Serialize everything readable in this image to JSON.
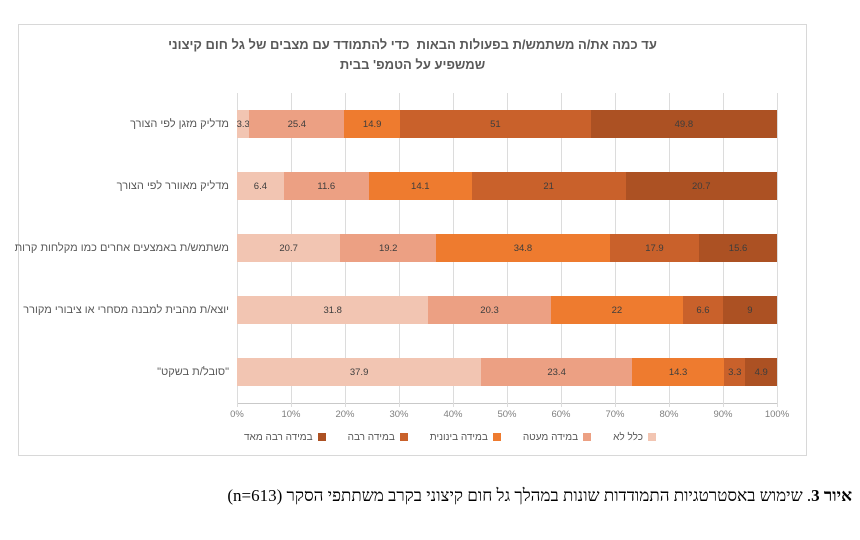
{
  "chart_data": {
    "type": "bar",
    "variant": "horizontal-stacked-normalized-100",
    "title": "עד כמה את/ה משתמש/ת בפעולות הבאות  כדי להתמודד עם מצבים של גל חום קיצוני\nשמשפיע על הטמפ' בבית",
    "categories": [
      "מדליק מזגן לפי הצורך",
      "מדליק מאוורר לפי הצורך",
      "משתמש/ת באמצעים אחרים כמו מקלחות קרות",
      "יוצא/ת מהבית למבנה מסחרי או ציבורי מקורר",
      "\"סובל/ת בשקט\""
    ],
    "series": [
      {
        "name": "כלל לא",
        "color": "#F2C5B2",
        "values": [
          3.3,
          6.4,
          20.7,
          31.8,
          37.9
        ]
      },
      {
        "name": "במידה מעטה",
        "color": "#ECA083",
        "values": [
          25.4,
          11.6,
          19.2,
          20.3,
          23.4
        ]
      },
      {
        "name": "במידה בינונית",
        "color": "#EE7B2F",
        "values": [
          14.9,
          14.1,
          34.8,
          22,
          14.3
        ]
      },
      {
        "name": "במידה רבה",
        "color": "#C9612B",
        "values": [
          51,
          21,
          17.9,
          6.6,
          3.3
        ]
      },
      {
        "name": "במידה רבה מאד",
        "color": "#AC5123",
        "values": [
          49.8,
          20.7,
          15.6,
          9,
          4.9
        ]
      }
    ],
    "x_ticks": [
      "0%",
      "10%",
      "20%",
      "30%",
      "40%",
      "50%",
      "60%",
      "70%",
      "80%",
      "90%",
      "100%"
    ],
    "xlim": [
      0,
      100
    ],
    "grid": true,
    "legend_position": "bottom",
    "note": "segment widths are each value divided by its row sum (100% stacked); data labels show raw values"
  },
  "caption": {
    "bold": "איור 3",
    "rest": ". שימוש באסטרטגיות התמודדות שונות במהלך גל חום קיצוני בקרב משתתפי הסקר (n=613)"
  }
}
